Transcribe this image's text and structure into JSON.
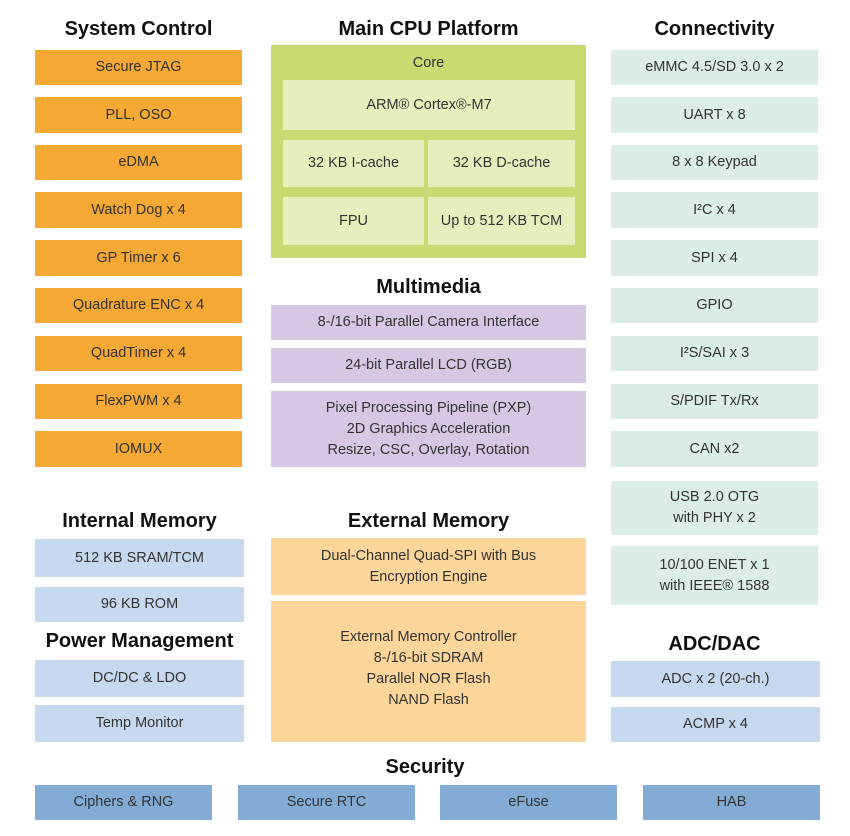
{
  "system_control": {
    "title": "System Control",
    "items": [
      "Secure JTAG",
      "PLL, OSO",
      "eDMA",
      "Watch Dog x 4",
      "GP Timer x 6",
      "Quadrature ENC x 4",
      "QuadTimer x 4",
      "FlexPWM x 4",
      "IOMUX"
    ]
  },
  "main_cpu": {
    "title": "Main CPU Platform",
    "core_label": "Core",
    "cpu": "ARM® Cortex®-M7",
    "icache": "32 KB I-cache",
    "dcache": "32 KB D-cache",
    "fpu": "FPU",
    "tcm": "Up to 512 KB TCM"
  },
  "multimedia": {
    "title": "Multimedia",
    "items": [
      "8-/16-bit Parallel Camera Interface",
      "24-bit Parallel LCD (RGB)",
      "Pixel Processing Pipeline (PXP)\n2D Graphics Acceleration\nResize, CSC, Overlay, Rotation"
    ]
  },
  "connectivity": {
    "title": "Connectivity",
    "items": [
      "eMMC 4.5/SD 3.0 x 2",
      "UART x 8",
      "8 x 8 Keypad",
      "I²C x 4",
      "SPI x 4",
      "GPIO",
      "I²S/SAI x 3",
      "S/PDIF Tx/Rx",
      "CAN x2",
      "USB 2.0 OTG\nwith PHY x 2",
      "10/100 ENET x 1\nwith IEEE® 1588"
    ]
  },
  "internal_memory": {
    "title": "Internal Memory",
    "items": [
      "512 KB SRAM/TCM",
      "96 KB ROM"
    ]
  },
  "external_memory": {
    "title": "External Memory",
    "items": [
      "Dual-Channel Quad-SPI with Bus\nEncryption Engine",
      "External Memory Controller\n8-/16-bit SDRAM\nParallel NOR Flash\nNAND Flash"
    ]
  },
  "power_management": {
    "title": "Power Management",
    "items": [
      "DC/DC & LDO",
      "Temp Monitor"
    ]
  },
  "adc_dac": {
    "title": "ADC/DAC",
    "items": [
      "ADC x 2 (20-ch.)",
      "ACMP x 4"
    ]
  },
  "security": {
    "title": "Security",
    "items": [
      "Ciphers & RNG",
      "Secure RTC",
      "eFuse",
      "HAB"
    ]
  },
  "colors": {
    "system_control": "#f5a833",
    "cpu_outer": "#c9da73",
    "cpu_inner": "#e7eebd",
    "multimedia": "#d6c8e5",
    "external_memory": "#fcd59b",
    "connectivity": "#dcede6",
    "memory_power_adc": "#c6d9ee",
    "security": "#82acd6"
  }
}
